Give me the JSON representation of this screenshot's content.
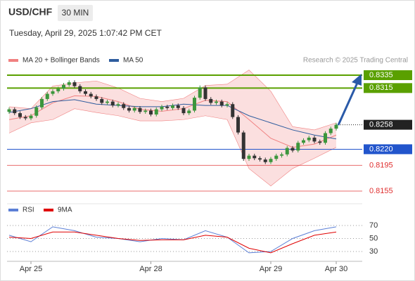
{
  "chart_data": {
    "type": "candlestick",
    "title": "USD/CHF",
    "timeframe": "30 MIN",
    "subtitle": "Tuesday, April 29, 2025 1:07:42 PM CET",
    "credit": "Research © 2025 Trading Central",
    "up_color": "#3c963c",
    "down_color": "#333333",
    "candles": [
      [
        0.8278,
        0.8285,
        0.8275,
        0.8282
      ],
      [
        0.8282,
        0.8285,
        0.8273,
        0.8276
      ],
      [
        0.8276,
        0.8279,
        0.8267,
        0.827
      ],
      [
        0.827,
        0.8273,
        0.8265,
        0.8268
      ],
      [
        0.8268,
        0.8275,
        0.8265,
        0.8272
      ],
      [
        0.8272,
        0.8288,
        0.8269,
        0.8285
      ],
      [
        0.8285,
        0.8301,
        0.8282,
        0.8298
      ],
      [
        0.8298,
        0.8309,
        0.8295,
        0.8306
      ],
      [
        0.8306,
        0.8313,
        0.8303,
        0.831
      ],
      [
        0.831,
        0.8317,
        0.8307,
        0.8314
      ],
      [
        0.8314,
        0.8323,
        0.8311,
        0.832
      ],
      [
        0.832,
        0.8327,
        0.8317,
        0.8324
      ],
      [
        0.8324,
        0.8327,
        0.8315,
        0.8318
      ],
      [
        0.8318,
        0.8321,
        0.8307,
        0.831
      ],
      [
        0.831,
        0.8313,
        0.8303,
        0.8306
      ],
      [
        0.8306,
        0.8309,
        0.8299,
        0.8302
      ],
      [
        0.8302,
        0.8305,
        0.8295,
        0.8298
      ],
      [
        0.8298,
        0.8301,
        0.8289,
        0.8292
      ],
      [
        0.8292,
        0.8297,
        0.8289,
        0.8294
      ],
      [
        0.8294,
        0.8297,
        0.8285,
        0.8288
      ],
      [
        0.8288,
        0.8293,
        0.8285,
        0.829
      ],
      [
        0.829,
        0.8293,
        0.8281,
        0.8284
      ],
      [
        0.8284,
        0.8287,
        0.8277,
        0.828
      ],
      [
        0.828,
        0.8287,
        0.8277,
        0.8284
      ],
      [
        0.8284,
        0.8287,
        0.8275,
        0.8278
      ],
      [
        0.8278,
        0.8283,
        0.8275,
        0.828
      ],
      [
        0.828,
        0.8283,
        0.8271,
        0.8274
      ],
      [
        0.8274,
        0.8285,
        0.8271,
        0.8282
      ],
      [
        0.8282,
        0.8289,
        0.8279,
        0.8286
      ],
      [
        0.8286,
        0.8289,
        0.8281,
        0.8284
      ],
      [
        0.8284,
        0.8291,
        0.8281,
        0.8288
      ],
      [
        0.8288,
        0.8291,
        0.8281,
        0.8284
      ],
      [
        0.8284,
        0.8287,
        0.8273,
        0.8276
      ],
      [
        0.8276,
        0.8283,
        0.8273,
        0.828
      ],
      [
        0.828,
        0.8303,
        0.8277,
        0.83
      ],
      [
        0.83,
        0.8319,
        0.8297,
        0.8316
      ],
      [
        0.8316,
        0.8319,
        0.8295,
        0.8298
      ],
      [
        0.8298,
        0.8301,
        0.8289,
        0.8292
      ],
      [
        0.8292,
        0.8297,
        0.8289,
        0.8294
      ],
      [
        0.8294,
        0.8297,
        0.8285,
        0.8288
      ],
      [
        0.8288,
        0.8293,
        0.8285,
        0.829
      ],
      [
        0.829,
        0.8293,
        0.8267,
        0.827
      ],
      [
        0.827,
        0.8273,
        0.8243,
        0.8246
      ],
      [
        0.8246,
        0.8249,
        0.8202,
        0.8205
      ],
      [
        0.8205,
        0.8213,
        0.8202,
        0.821
      ],
      [
        0.821,
        0.8213,
        0.8203,
        0.8206
      ],
      [
        0.8206,
        0.8209,
        0.8201,
        0.8204
      ],
      [
        0.8204,
        0.8207,
        0.8197,
        0.82
      ],
      [
        0.82,
        0.8208,
        0.8197,
        0.8205
      ],
      [
        0.8205,
        0.8213,
        0.8202,
        0.821
      ],
      [
        0.821,
        0.8215,
        0.8207,
        0.8212
      ],
      [
        0.8212,
        0.8225,
        0.8209,
        0.8222
      ],
      [
        0.8222,
        0.8225,
        0.8215,
        0.8218
      ],
      [
        0.8218,
        0.8233,
        0.8215,
        0.823
      ],
      [
        0.823,
        0.8237,
        0.8227,
        0.8234
      ],
      [
        0.8234,
        0.8241,
        0.8231,
        0.8238
      ],
      [
        0.8238,
        0.8241,
        0.8229,
        0.8232
      ],
      [
        0.8232,
        0.8235,
        0.8227,
        0.823
      ],
      [
        0.823,
        0.8248,
        0.8227,
        0.8245
      ],
      [
        0.8245,
        0.8255,
        0.8242,
        0.8252
      ],
      [
        0.8252,
        0.8261,
        0.8249,
        0.8258
      ]
    ],
    "xticks": [
      {
        "value": 4,
        "label": "Apr 25"
      },
      {
        "value": 26,
        "label": "Apr 28"
      },
      {
        "value": 48,
        "label": "Apr 29"
      },
      {
        "value": 60,
        "label": "Apr 30"
      }
    ],
    "ylim": [
      0.8145,
      0.835
    ],
    "overlay_x": [
      0,
      4,
      8,
      12,
      16,
      20,
      24,
      28,
      32,
      36,
      40,
      44,
      48,
      52,
      56,
      60
    ],
    "series": [
      {
        "name": "MA 20 + Bollinger Bands",
        "color": "#f08080",
        "values": [
          0.8266,
          0.8272,
          0.8292,
          0.8303,
          0.8302,
          0.8294,
          0.8282,
          0.8279,
          0.8283,
          0.8296,
          0.8294,
          0.8266,
          0.8237,
          0.8223,
          0.8228,
          0.8242
        ],
        "upper": [
          0.8286,
          0.8283,
          0.8318,
          0.8323,
          0.8326,
          0.8315,
          0.8299,
          0.8294,
          0.8299,
          0.8319,
          0.8321,
          0.8343,
          0.831,
          0.8255,
          0.825,
          0.8261
        ],
        "lower": [
          0.8245,
          0.8261,
          0.8266,
          0.8283,
          0.8277,
          0.8272,
          0.8264,
          0.8264,
          0.8266,
          0.8272,
          0.8266,
          0.819,
          0.8163,
          0.819,
          0.8206,
          0.8223
        ]
      },
      {
        "name": "MA 50",
        "color": "#2e5c9e",
        "values": [
          0.8277,
          0.8283,
          0.8294,
          0.8297,
          0.829,
          0.8288,
          0.8286,
          0.8286,
          0.829,
          0.8288,
          0.8288,
          0.8272,
          0.8261,
          0.825,
          0.8242,
          0.8236
        ]
      }
    ],
    "levels": [
      {
        "value": 0.8335,
        "color": "#5aa000",
        "style": "box"
      },
      {
        "value": 0.8315,
        "color": "#5aa000",
        "style": "box"
      },
      {
        "value": 0.8258,
        "color": "#222222",
        "style": "dotted"
      },
      {
        "value": 0.822,
        "label": "0.8220",
        "color": "#2255cc",
        "style": "box"
      },
      {
        "value": 0.8195,
        "color": "#e03030",
        "style": "text"
      },
      {
        "value": 0.8155,
        "color": "#e03030",
        "style": "text"
      }
    ],
    "rsi": {
      "ylim": [
        20,
        80
      ],
      "yticks": [
        70,
        50,
        30
      ],
      "series": [
        {
          "name": "RSI",
          "color": "#5b7fd6",
          "values": [
            55,
            45,
            68,
            62,
            52,
            50,
            45,
            50,
            48,
            62,
            52,
            28,
            30,
            50,
            62,
            68
          ]
        },
        {
          "name": "9MA",
          "color": "#e00000",
          "values": [
            52,
            50,
            60,
            60,
            55,
            50,
            47,
            48,
            48,
            55,
            52,
            35,
            28,
            42,
            55,
            60
          ]
        }
      ]
    }
  }
}
